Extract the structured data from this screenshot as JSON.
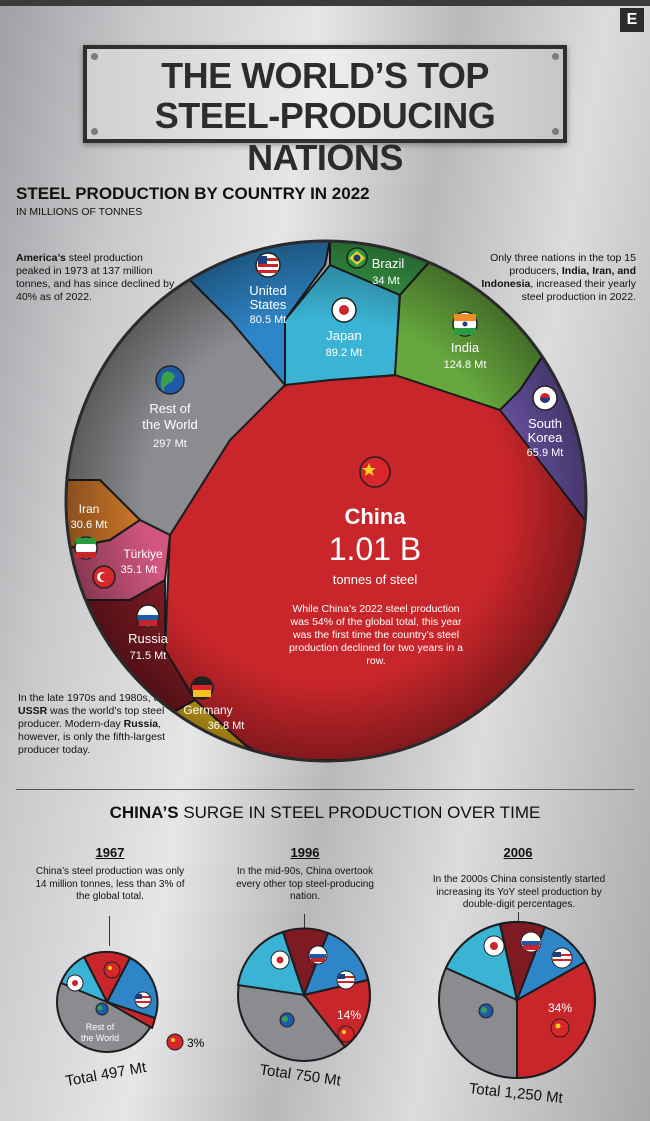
{
  "header": {
    "logo": "E",
    "title_line1": "THE WORLD’S TOP",
    "title_line2": "STEEL-PRODUCING NATIONS"
  },
  "section1": {
    "title": "STEEL PRODUCTION BY COUNTRY IN 2022",
    "subtitle": "IN MILLIONS OF TONNES"
  },
  "notes": {
    "usa_a": "America’s",
    "usa_b": " steel production peaked in 1973 at 137 million tonnes, and has since declined by 40% as of 2022.",
    "top15_a": "Only three nations in the top 15 producers, ",
    "top15_b": "India, Iran, and Indonesia",
    "top15_c": ", increased their yearly steel production in 2022.",
    "ussr_a": "In the late 1970s and 1980s, the ",
    "ussr_b": "USSR",
    "ussr_c": " was the world’s top steel producer. Modern-day ",
    "ussr_d": "Russia",
    "ussr_e": ", however, is only the fifth-largest producer today.",
    "china": "While China’s 2022 steel production was 54% of the global total, this year was the first time the country’s steel production declined for two years in a row."
  },
  "chart_data": [
    {
      "type": "voronoi-treemap",
      "title": "STEEL PRODUCTION BY COUNTRY IN 2022",
      "unit": "IN MILLIONS OF TONNES",
      "cells": [
        {
          "name": "China",
          "value": 1010,
          "label": "1.01 B",
          "sublabel": "tonnes of steel",
          "color": "#c8262b",
          "flag": "china-flag-icon"
        },
        {
          "name": "Rest of the World",
          "value": 297,
          "label": "297 Mt",
          "color": "#8b8c8f",
          "flag": "globe-icon"
        },
        {
          "name": "India",
          "value": 124.8,
          "label": "124.8 Mt",
          "color": "#67a83e",
          "flag": "india-flag-icon"
        },
        {
          "name": "Japan",
          "value": 89.2,
          "label": "89.2 Mt",
          "color": "#3bb3d4",
          "flag": "japan-flag-icon"
        },
        {
          "name": "United States",
          "value": 80.5,
          "label": "80.5 Mt",
          "color": "#2e86c8",
          "flag": "us-flag-icon"
        },
        {
          "name": "Russia",
          "value": 71.5,
          "label": "71.5 Mt",
          "color": "#7d1a22",
          "flag": "russia-flag-icon"
        },
        {
          "name": "South Korea",
          "value": 65.9,
          "label": "65.9 Mt",
          "color": "#6b54a6",
          "flag": "south-korea-flag-icon"
        },
        {
          "name": "Germany",
          "value": 36.8,
          "label": "36.8 Mt",
          "color": "#e4b51c",
          "flag": "germany-flag-icon"
        },
        {
          "name": "Türkiye",
          "value": 35.1,
          "label": "35.1 Mt",
          "color": "#d0567e",
          "flag": "turkiye-flag-icon"
        },
        {
          "name": "Brazil",
          "value": 34,
          "label": "34 Mt",
          "color": "#3aa04a",
          "flag": "brazil-flag-icon"
        },
        {
          "name": "Iran",
          "value": 30.6,
          "label": "30.6 Mt",
          "color": "#d27a2b",
          "flag": "iran-flag-icon"
        }
      ]
    },
    {
      "type": "pie",
      "title": "1967",
      "total": "Total 497 Mt",
      "china_share_pct": 3,
      "china_label": "3%",
      "slices": [
        {
          "name": "China",
          "color": "#c8262b"
        },
        {
          "name": "Russia",
          "color": "#c8262b"
        },
        {
          "name": "Japan",
          "color": "#3bb3d4"
        },
        {
          "name": "United States",
          "color": "#2e86c8"
        },
        {
          "name": "Rest of the World",
          "label": "Rest of the World",
          "color": "#8b8c8f"
        }
      ]
    },
    {
      "type": "pie",
      "title": "1996",
      "total": "Total 750 Mt",
      "china_share_pct": 14,
      "china_label": "14%",
      "slices": [
        {
          "name": "China",
          "color": "#c8262b"
        },
        {
          "name": "Japan",
          "color": "#3bb3d4"
        },
        {
          "name": "Russia",
          "color": "#7d1a22"
        },
        {
          "name": "United States",
          "color": "#2e86c8"
        },
        {
          "name": "Rest of the World",
          "color": "#8b8c8f"
        }
      ]
    },
    {
      "type": "pie",
      "title": "2006",
      "total": "Total 1,250 Mt",
      "china_share_pct": 34,
      "china_label": "34%",
      "slices": [
        {
          "name": "China",
          "color": "#c8262b"
        },
        {
          "name": "Japan",
          "color": "#3bb3d4"
        },
        {
          "name": "Russia",
          "color": "#7d1a22"
        },
        {
          "name": "United States",
          "color": "#2e86c8"
        },
        {
          "name": "Rest of the World",
          "color": "#8b8c8f"
        }
      ]
    }
  ],
  "section2": {
    "title_bold": "CHINA’S",
    "title_rest": " SURGE IN STEEL PRODUCTION OVER TIME"
  },
  "timeline": [
    {
      "year": "1967",
      "text": "China’s steel production was only 14 million tonnes, less than 3% of the global total."
    },
    {
      "year": "1996",
      "text": "In the mid-90s, China overtook every other top steel-producing nation."
    },
    {
      "year": "2006",
      "text": "In the 2000s China consistently started increasing its YoY steel production by double-digit percentages."
    }
  ],
  "labels": {
    "china": "China",
    "rest1": "Rest of",
    "rest2": "the World",
    "us1": "United",
    "us2": "States",
    "japan": "Japan",
    "india": "India",
    "brazil": "Brazil",
    "sk1": "South",
    "sk2": "Korea",
    "iran": "Iran",
    "turkiye": "Türkiye",
    "russia": "Russia",
    "germany": "Germany",
    "rest_small1": "Rest of",
    "rest_small2": "the World"
  }
}
